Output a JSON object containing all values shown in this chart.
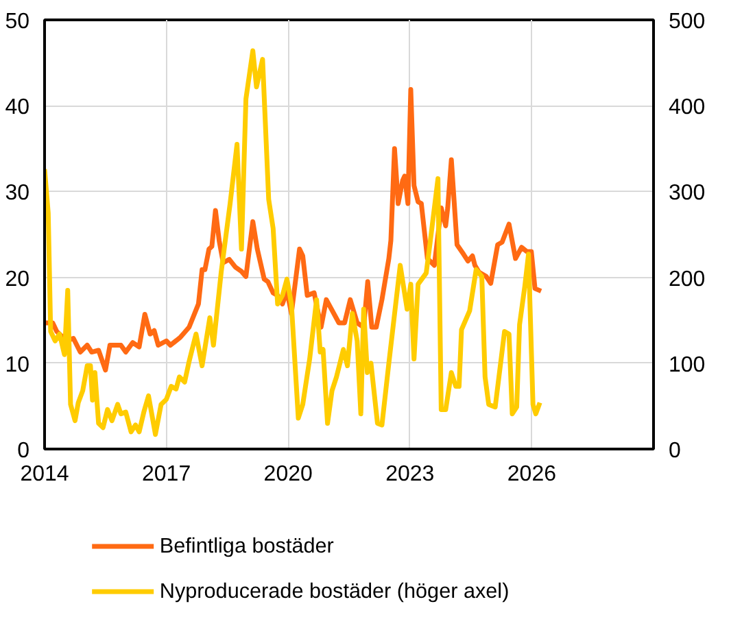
{
  "chart_data": {
    "type": "line",
    "xlim": [
      2014,
      2029
    ],
    "xticks": [
      2014,
      2017,
      2020,
      2023,
      2026
    ],
    "ylim": [
      0,
      50
    ],
    "yticks": [
      0,
      10,
      20,
      30,
      40,
      50
    ],
    "y2lim": [
      0,
      500
    ],
    "y2ticks": [
      0,
      100,
      200,
      300,
      400,
      500
    ],
    "grid": true,
    "legend": "bottom",
    "line_style": "solid",
    "series": [
      {
        "name": "Befintliga bostäder",
        "color": "#ff6a13",
        "x": [
          2014.0,
          2014.2,
          2014.3,
          2014.55,
          2014.71,
          2014.88,
          2015.05,
          2015.16,
          2015.33,
          2015.5,
          2015.61,
          2015.88,
          2016.0,
          2016.17,
          2016.33,
          2016.47,
          2016.6,
          2016.7,
          2016.8,
          2017.0,
          2017.1,
          2017.34,
          2017.56,
          2017.79,
          2017.88,
          2017.95,
          2018.05,
          2018.12,
          2018.21,
          2018.3,
          2018.4,
          2018.55,
          2018.7,
          2018.85,
          2018.96,
          2019.13,
          2019.24,
          2019.41,
          2019.5,
          2019.63,
          2019.74,
          2019.86,
          2019.97,
          2020.08,
          2020.28,
          2020.36,
          2020.47,
          2020.64,
          2020.81,
          2020.94,
          2021.25,
          2021.39,
          2021.53,
          2021.7,
          2021.86,
          2021.96,
          2022.06,
          2022.17,
          2022.31,
          2022.48,
          2022.53,
          2022.62,
          2022.71,
          2022.82,
          2022.87,
          2022.95,
          2023.02,
          2023.1,
          2023.2,
          2023.28,
          2023.43,
          2023.6,
          2023.77,
          2023.88,
          2023.93,
          2024.02,
          2024.16,
          2024.32,
          2024.43,
          2024.54,
          2024.6,
          2024.7,
          2024.88,
          2024.99,
          2025.16,
          2025.27,
          2025.44,
          2025.6,
          2025.75,
          2025.88,
          2025.99,
          2026.08,
          2026.23
        ],
        "values": [
          14.7,
          14.7,
          13.7,
          12.6,
          12.9,
          11.3,
          12.1,
          11.3,
          11.5,
          9.2,
          12.1,
          12.1,
          11.3,
          12.4,
          11.9,
          15.7,
          13.4,
          13.8,
          12.1,
          12.6,
          12.1,
          13.0,
          14.2,
          16.9,
          20.9,
          20.9,
          23.3,
          23.6,
          27.8,
          24.3,
          21.7,
          22.1,
          21.2,
          20.7,
          20.1,
          26.5,
          23.3,
          19.8,
          19.5,
          18.2,
          17.9,
          16.9,
          18.4,
          15.8,
          23.3,
          22.5,
          17.9,
          18.2,
          14.2,
          17.4,
          14.7,
          14.7,
          17.4,
          14.7,
          14.2,
          19.5,
          14.2,
          14.2,
          17.4,
          22.2,
          24.3,
          35.0,
          28.6,
          31.3,
          31.8,
          28.6,
          41.9,
          30.7,
          28.8,
          28.6,
          22.2,
          21.4,
          28.1,
          26.0,
          28.1,
          33.7,
          23.8,
          22.7,
          21.9,
          22.5,
          21.4,
          20.6,
          20.1,
          19.3,
          23.8,
          24.1,
          26.2,
          22.2,
          23.5,
          23.0,
          23.0,
          18.7,
          18.4
        ]
      },
      {
        "name": "Nyproducerade bostäder (höger axel)",
        "color": "#ffcc00",
        "axis": "y2",
        "x": [
          2014.0,
          2014.09,
          2014.15,
          2014.26,
          2014.37,
          2014.49,
          2014.57,
          2014.64,
          2014.75,
          2014.83,
          2014.94,
          2015.05,
          2015.13,
          2015.18,
          2015.24,
          2015.33,
          2015.44,
          2015.55,
          2015.66,
          2015.8,
          2015.88,
          2016.0,
          2016.13,
          2016.24,
          2016.33,
          2016.45,
          2016.56,
          2016.73,
          2016.87,
          2017.0,
          2017.12,
          2017.24,
          2017.32,
          2017.45,
          2017.56,
          2017.73,
          2017.88,
          2018.07,
          2018.16,
          2018.35,
          2018.57,
          2018.74,
          2018.85,
          2018.96,
          2019.13,
          2019.22,
          2019.37,
          2019.52,
          2019.63,
          2019.74,
          2019.86,
          2019.97,
          2020.08,
          2020.25,
          2020.36,
          2020.53,
          2020.7,
          2020.79,
          2020.86,
          2020.97,
          2021.08,
          2021.19,
          2021.36,
          2021.46,
          2021.58,
          2021.7,
          2021.79,
          2021.86,
          2021.95,
          2022.04,
          2022.2,
          2022.31,
          2022.48,
          2022.76,
          2022.93,
          2023.02,
          2023.1,
          2023.2,
          2023.4,
          2023.49,
          2023.69,
          2023.77,
          2023.88,
          2024.02,
          2024.13,
          2024.21,
          2024.27,
          2024.47,
          2024.63,
          2024.77,
          2024.85,
          2024.94,
          2025.1,
          2025.33,
          2025.44,
          2025.52,
          2025.63,
          2025.7,
          2025.83,
          2025.92,
          2026.03,
          2026.1,
          2026.2
        ],
        "values": [
          326,
          275,
          137,
          126,
          134,
          110,
          185,
          52,
          33,
          54,
          68,
          97,
          97,
          57,
          89,
          30,
          25,
          46,
          33,
          52,
          41,
          43,
          20,
          28,
          20,
          44,
          62,
          17,
          52,
          58,
          73,
          70,
          84,
          78,
          102,
          134,
          97,
          153,
          121,
          206,
          286,
          355,
          233,
          408,
          464,
          422,
          454,
          291,
          257,
          169,
          179,
          198,
          169,
          36,
          52,
          105,
          174,
          113,
          116,
          30,
          68,
          84,
          116,
          97,
          158,
          126,
          41,
          163,
          89,
          100,
          30,
          28,
          100,
          214,
          163,
          192,
          105,
          192,
          205,
          238,
          315,
          46,
          46,
          89,
          73,
          73,
          139,
          161,
          209,
          201,
          84,
          52,
          49,
          137,
          134,
          41,
          49,
          145,
          190,
          227,
          52,
          41,
          54
        ]
      }
    ]
  }
}
